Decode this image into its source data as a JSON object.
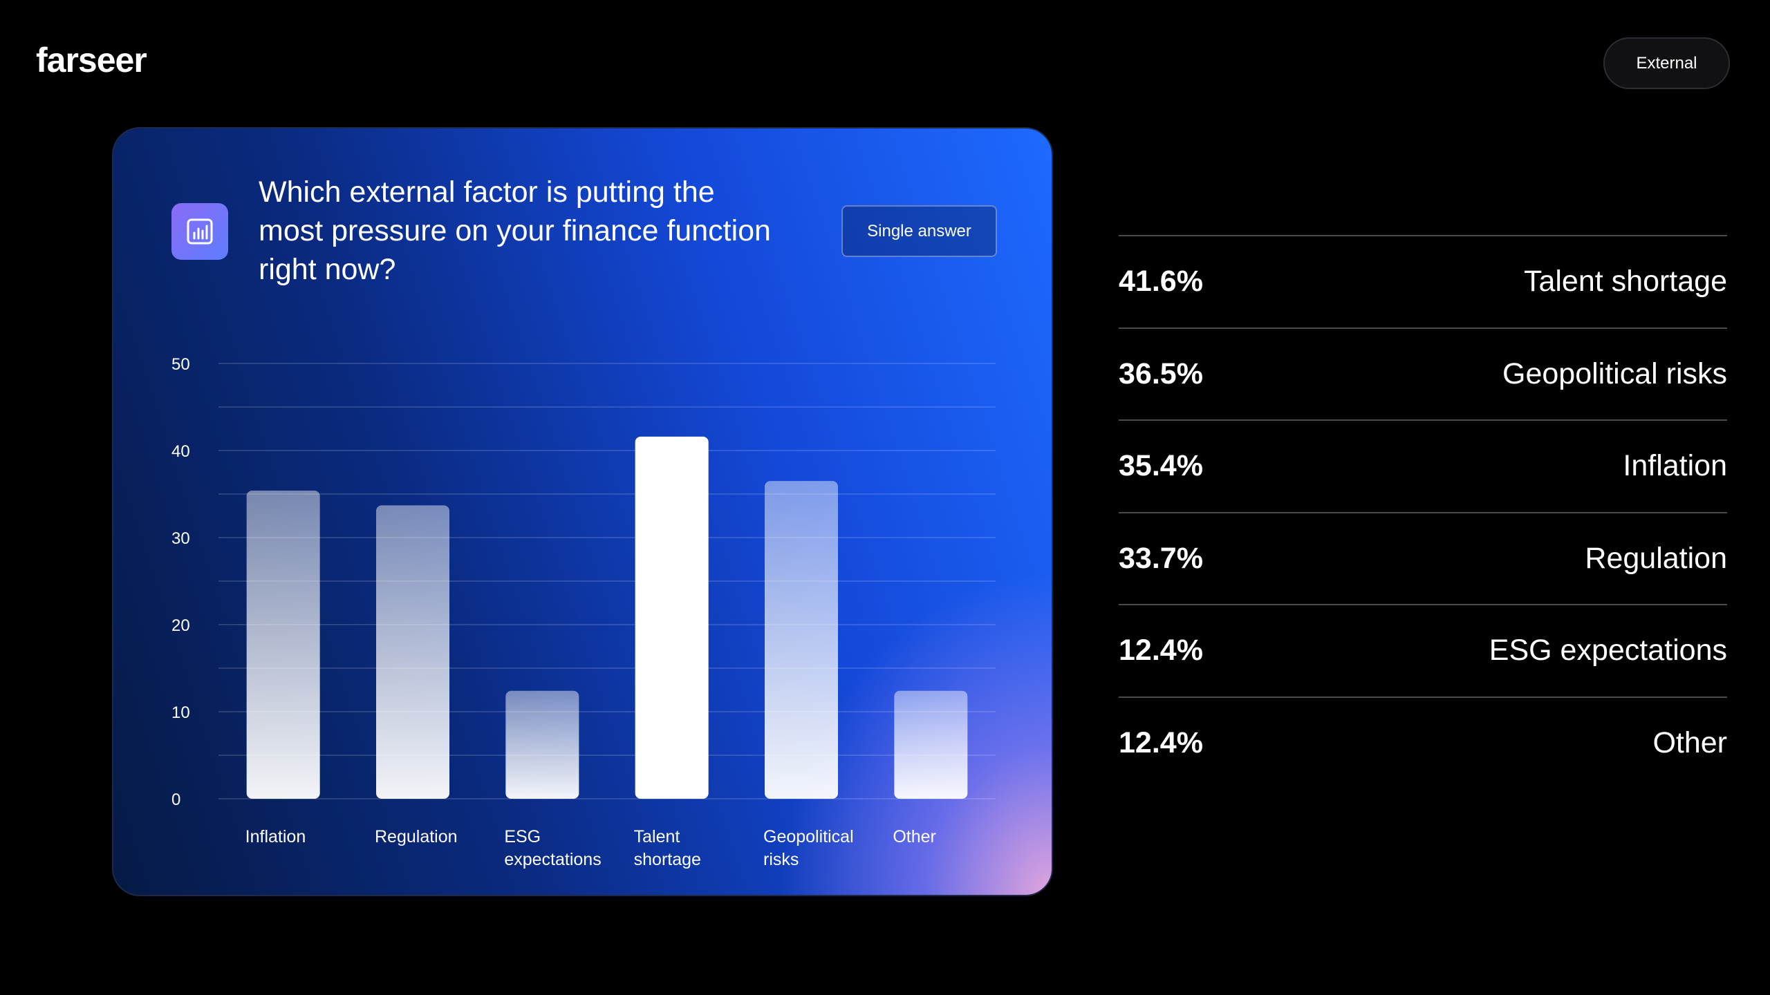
{
  "brand": {
    "logo_text": "farseer"
  },
  "header": {
    "badge_label": "External"
  },
  "card": {
    "question": "Which external factor is putting the most pressure on your finance function right now?",
    "answer_type": "Single answer",
    "icon": "bar-chart-icon"
  },
  "chart_data": {
    "type": "bar",
    "categories": [
      "Inflation",
      "Regulation",
      "ESG expectations",
      "Talent shortage",
      "Geopolitical risks",
      "Other"
    ],
    "category_lines": [
      [
        "Inflation"
      ],
      [
        "Regulation"
      ],
      [
        "ESG",
        "expectations"
      ],
      [
        "Talent",
        "shortage"
      ],
      [
        "Geopolitical",
        "risks"
      ],
      [
        "Other"
      ]
    ],
    "values": [
      35.4,
      33.7,
      12.4,
      41.6,
      36.5,
      12.4
    ],
    "ylim": [
      0,
      50
    ],
    "yticks": [
      0,
      10,
      20,
      30,
      40,
      50
    ],
    "ytick_labels": [
      "0",
      "10",
      "20",
      "30",
      "40",
      "50"
    ],
    "grid": true,
    "title": "",
    "xlabel": "",
    "ylabel": "",
    "highlight_color": "#ffffff"
  },
  "results": [
    {
      "percent": "41.6%",
      "label": "Talent shortage"
    },
    {
      "percent": "36.5%",
      "label": "Geopolitical risks"
    },
    {
      "percent": "35.4%",
      "label": "Inflation"
    },
    {
      "percent": "33.7%",
      "label": "Regulation"
    },
    {
      "percent": "12.4%",
      "label": "ESG expectations"
    },
    {
      "percent": "12.4%",
      "label": "Other"
    }
  ]
}
